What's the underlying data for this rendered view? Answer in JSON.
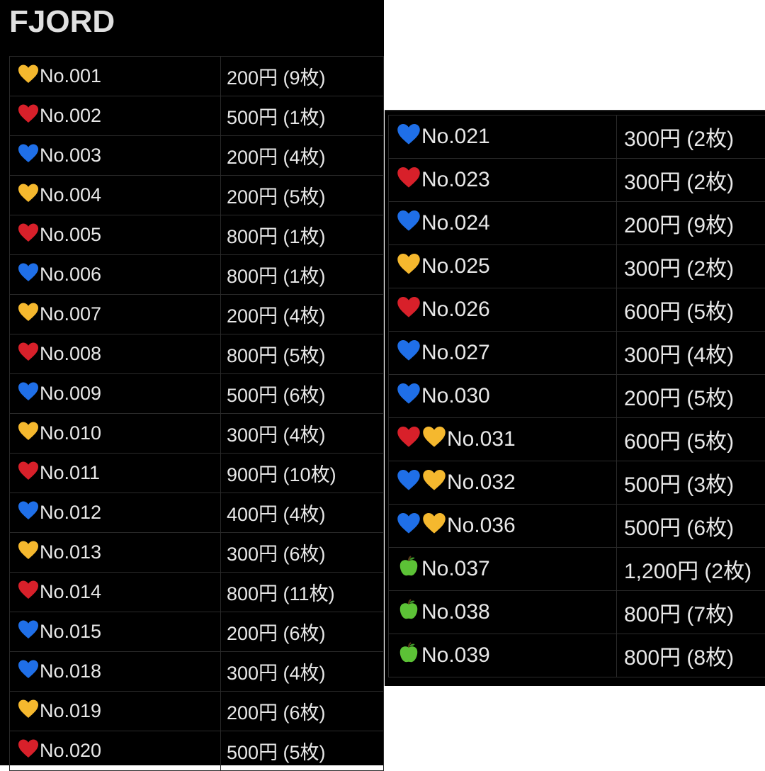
{
  "title": "FJORD",
  "colors": {
    "yellow-heart": "#f5b82e",
    "red-heart": "#d8202a",
    "blue-heart": "#1f6fe8",
    "green-apple": "#5cc236"
  },
  "left_rows": [
    {
      "icons": [
        "yellow-heart"
      ],
      "no": "No.001",
      "price": "200円 (9枚)"
    },
    {
      "icons": [
        "red-heart"
      ],
      "no": "No.002",
      "price": "500円 (1枚)"
    },
    {
      "icons": [
        "blue-heart"
      ],
      "no": "No.003",
      "price": "200円 (4枚)"
    },
    {
      "icons": [
        "yellow-heart"
      ],
      "no": "No.004",
      "price": "200円 (5枚)"
    },
    {
      "icons": [
        "red-heart"
      ],
      "no": "No.005",
      "price": "800円 (1枚)"
    },
    {
      "icons": [
        "blue-heart"
      ],
      "no": "No.006",
      "price": "800円 (1枚)"
    },
    {
      "icons": [
        "yellow-heart"
      ],
      "no": "No.007",
      "price": "200円 (4枚)"
    },
    {
      "icons": [
        "red-heart"
      ],
      "no": "No.008",
      "price": "800円 (5枚)"
    },
    {
      "icons": [
        "blue-heart"
      ],
      "no": "No.009",
      "price": "500円 (6枚)"
    },
    {
      "icons": [
        "yellow-heart"
      ],
      "no": "No.010",
      "price": "300円 (4枚)"
    },
    {
      "icons": [
        "red-heart"
      ],
      "no": "No.011",
      "price": "900円 (10枚)"
    },
    {
      "icons": [
        "blue-heart"
      ],
      "no": "No.012",
      "price": "400円 (4枚)"
    },
    {
      "icons": [
        "yellow-heart"
      ],
      "no": "No.013",
      "price": "300円 (6枚)"
    },
    {
      "icons": [
        "red-heart"
      ],
      "no": "No.014",
      "price": "800円 (11枚)"
    },
    {
      "icons": [
        "blue-heart"
      ],
      "no": "No.015",
      "price": "200円 (6枚)"
    },
    {
      "icons": [
        "blue-heart"
      ],
      "no": "No.018",
      "price": "300円 (4枚)"
    },
    {
      "icons": [
        "yellow-heart"
      ],
      "no": "No.019",
      "price": "200円 (6枚)"
    },
    {
      "icons": [
        "red-heart"
      ],
      "no": "No.020",
      "price": "500円 (5枚)"
    }
  ],
  "right_rows": [
    {
      "icons": [
        "blue-heart"
      ],
      "no": "No.021",
      "price": "300円 (2枚)"
    },
    {
      "icons": [
        "red-heart"
      ],
      "no": "No.023",
      "price": "300円 (2枚)"
    },
    {
      "icons": [
        "blue-heart"
      ],
      "no": "No.024",
      "price": "200円 (9枚)"
    },
    {
      "icons": [
        "yellow-heart"
      ],
      "no": "No.025",
      "price": "300円 (2枚)"
    },
    {
      "icons": [
        "red-heart"
      ],
      "no": "No.026",
      "price": "600円 (5枚)"
    },
    {
      "icons": [
        "blue-heart"
      ],
      "no": "No.027",
      "price": "300円 (4枚)"
    },
    {
      "icons": [
        "blue-heart"
      ],
      "no": "No.030",
      "price": "200円 (5枚)"
    },
    {
      "icons": [
        "red-heart",
        "yellow-heart"
      ],
      "no": "No.031",
      "price": "600円 (5枚)"
    },
    {
      "icons": [
        "blue-heart",
        "yellow-heart"
      ],
      "no": "No.032",
      "price": "500円 (3枚)"
    },
    {
      "icons": [
        "blue-heart",
        "yellow-heart"
      ],
      "no": "No.036",
      "price": "500円 (6枚)"
    },
    {
      "icons": [
        "green-apple"
      ],
      "no": "No.037",
      "price": "1,200円 (2枚)"
    },
    {
      "icons": [
        "green-apple"
      ],
      "no": "No.038",
      "price": "800円 (7枚)"
    },
    {
      "icons": [
        "green-apple"
      ],
      "no": "No.039",
      "price": "800円 (8枚)"
    }
  ]
}
